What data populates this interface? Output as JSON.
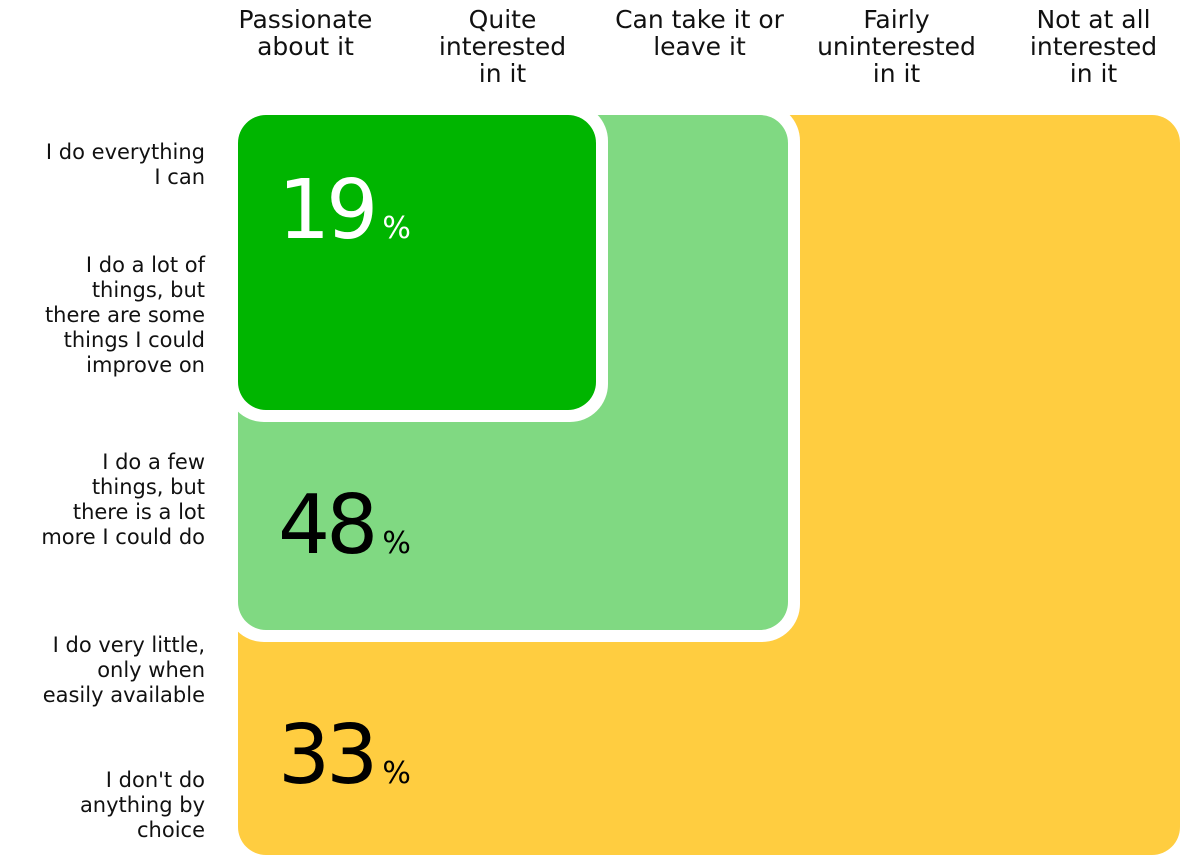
{
  "chart_data": {
    "type": "nested",
    "columns": [
      "Passionate\nabout it",
      "Quite\ninterested\nin it",
      "Can take it or\nleave it",
      "Fairly\nuninterested\nin it",
      "Not at all\ninterested\nin it"
    ],
    "rows": [
      "I do everything\nI can",
      "I do a lot of\nthings, but\nthere are some\nthings I could\nimprove on",
      "I do a few\nthings, but\nthere is a lot\nmore I could do",
      "I do very little,\nonly when\neasily available",
      "I don't do\nanything by\nchoice"
    ],
    "values": [
      19,
      48,
      33
    ],
    "unit": "%",
    "colors": [
      "#00b500",
      "#80d982",
      "#ffcd40"
    ],
    "text_colors": [
      "#ffffff",
      "#000000",
      "#000000"
    ]
  }
}
